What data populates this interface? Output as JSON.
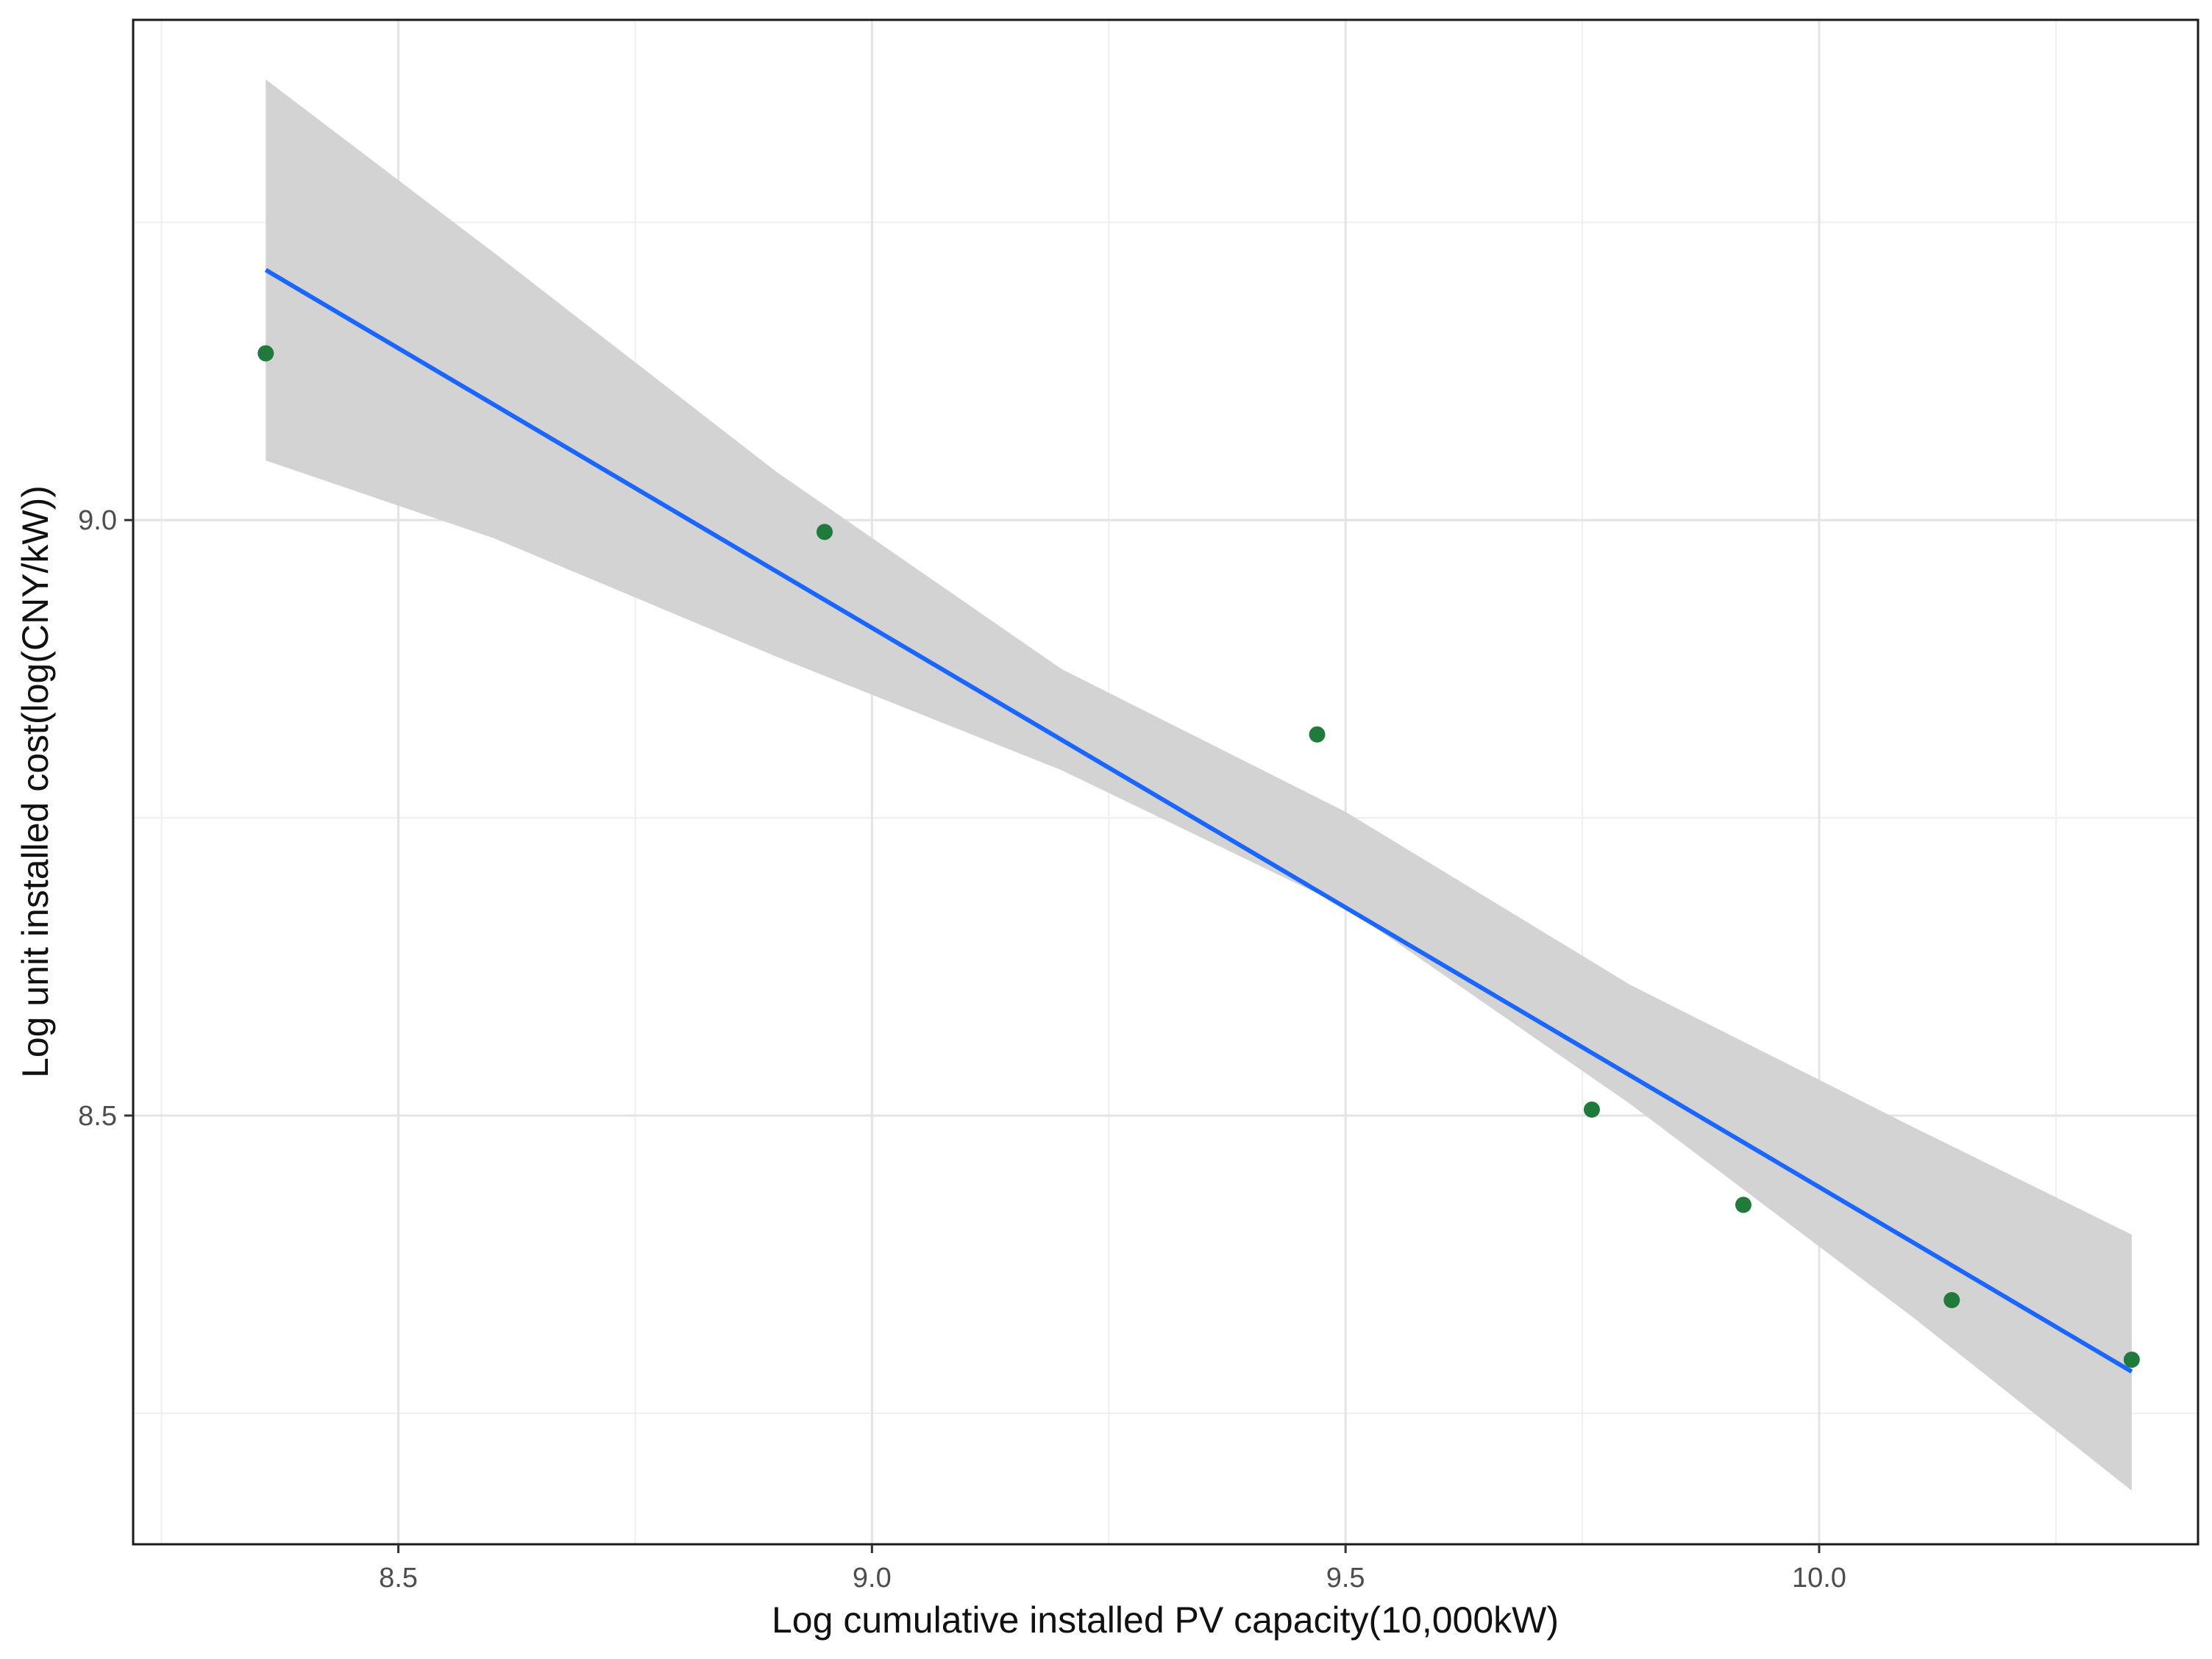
{
  "chart_data": {
    "type": "scatter",
    "title": "",
    "xlabel": "Log cumulative installed PV capacity(10,000kW)",
    "ylabel": "Log unit installed cost(log(CNY/kW))",
    "xlim": [
      8.22,
      10.4
    ],
    "ylim": [
      8.14,
      9.42
    ],
    "x_ticks": [
      8.5,
      9.0,
      9.5,
      10.0
    ],
    "x_tick_labels": [
      "8.5",
      "9.0",
      "9.5",
      "10.0"
    ],
    "y_ticks": [
      8.5,
      9.0
    ],
    "y_tick_labels": [
      "8.5",
      "9.0"
    ],
    "grid": true,
    "series": [
      {
        "name": "observations",
        "kind": "points",
        "color": "#1f7a3c",
        "x": [
          8.36,
          8.95,
          9.47,
          9.76,
          9.92,
          10.14,
          10.33
        ],
        "y": [
          9.14,
          8.99,
          8.82,
          8.505,
          8.425,
          8.345,
          8.295
        ]
      },
      {
        "name": "linear fit",
        "kind": "line",
        "color": "#1a66ff",
        "x": [
          8.36,
          10.33
        ],
        "y": [
          9.21,
          8.285
        ]
      },
      {
        "name": "95% confidence band",
        "kind": "band",
        "color": "#d3d3d3",
        "x": [
          8.36,
          8.6,
          8.9,
          9.2,
          9.5,
          9.8,
          10.1,
          10.33
        ],
        "lower": [
          9.05,
          8.985,
          8.885,
          8.79,
          8.675,
          8.51,
          8.33,
          8.185
        ],
        "upper": [
          9.37,
          9.225,
          9.04,
          8.875,
          8.755,
          8.61,
          8.49,
          8.4
        ]
      }
    ]
  }
}
